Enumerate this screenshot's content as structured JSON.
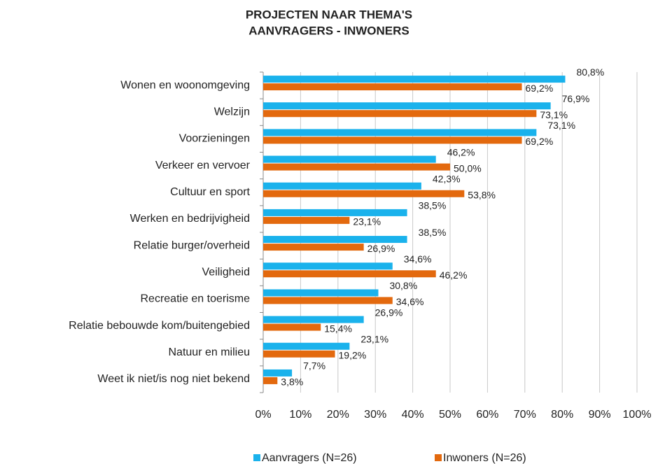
{
  "chart_data": {
    "type": "bar",
    "orientation": "horizontal",
    "title": "PROJECTEN NAAR THEMA'S",
    "subtitle": "AANVRAGERS - INWONERS",
    "categories": [
      "Wonen en woonomgeving",
      "Welzijn",
      "Voorzieningen",
      "Verkeer en vervoer",
      "Cultuur en sport",
      "Werken en bedrijvigheid",
      "Relatie burger/overheid",
      "Veiligheid",
      "Recreatie en toerisme",
      "Relatie bebouwde kom/buitengebied",
      "Natuur en milieu",
      "Weet ik niet/is nog niet bekend"
    ],
    "series": [
      {
        "name": "Aanvragers (N=26)",
        "color": "#1ab2ec",
        "values": [
          80.8,
          76.9,
          73.1,
          46.2,
          42.3,
          38.5,
          38.5,
          34.6,
          30.8,
          26.9,
          23.1,
          7.7
        ],
        "value_labels": [
          "80,8%",
          "76,9%",
          "73,1%",
          "46,2%",
          "42,3%",
          "38,5%",
          "38,5%",
          "34,6%",
          "30,8%",
          "26,9%",
          "23,1%",
          "7,7%"
        ]
      },
      {
        "name": "Inwoners (N=26)",
        "color": "#e3690e",
        "values": [
          69.2,
          73.1,
          69.2,
          50.0,
          53.8,
          23.1,
          26.9,
          46.2,
          34.6,
          15.4,
          19.2,
          3.8
        ],
        "value_labels": [
          "69,2%",
          "73,1%",
          "69,2%",
          "50,0%",
          "53,8%",
          "23,1%",
          "26,9%",
          "46,2%",
          "34,6%",
          "15,4%",
          "19,2%",
          "3,8%"
        ]
      }
    ],
    "xlim": [
      0,
      100
    ],
    "xticks": [
      {
        "value": 0,
        "label": "0%"
      },
      {
        "value": 10,
        "label": "10%"
      },
      {
        "value": 20,
        "label": "20%"
      },
      {
        "value": 30,
        "label": "30%"
      },
      {
        "value": 40,
        "label": "40%"
      },
      {
        "value": 50,
        "label": "50%"
      },
      {
        "value": 60,
        "label": "60%"
      },
      {
        "value": 70,
        "label": "70%"
      },
      {
        "value": 80,
        "label": "80%"
      },
      {
        "value": 90,
        "label": "90%"
      },
      {
        "value": 100,
        "label": "100%"
      }
    ],
    "grid": true,
    "legend": "bottom"
  }
}
